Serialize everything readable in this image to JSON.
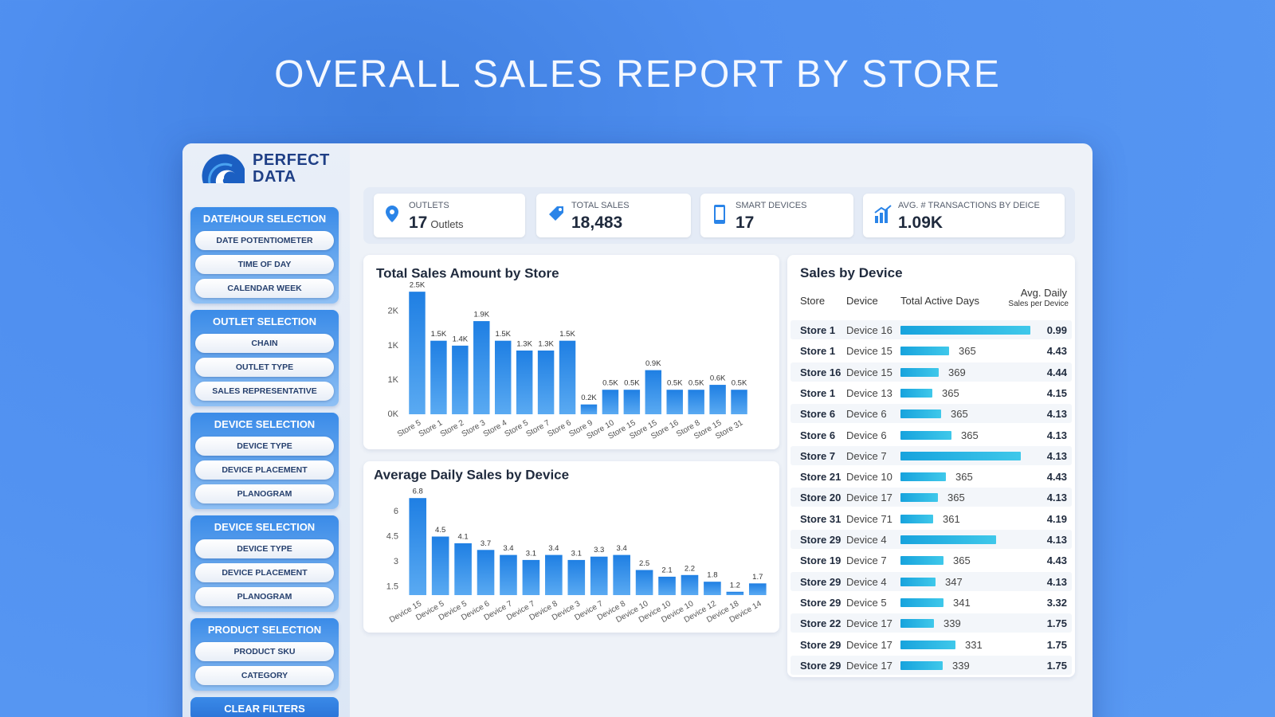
{
  "title": "OVERALL SALES REPORT BY STORE",
  "logo": {
    "line1": "PERFECT",
    "line2": "DATA"
  },
  "sidebar": {
    "sections": [
      {
        "heading": "DATE/HOUR SELECTION",
        "buttons": [
          "DATE POTENTIOMETER",
          "TIME OF DAY",
          "CALENDAR WEEK"
        ]
      },
      {
        "heading": "OUTLET SELECTION",
        "buttons": [
          "CHAIN",
          "OUTLET TYPE",
          "SALES REPRESENTATIVE"
        ]
      },
      {
        "heading": "DEVICE SELECTION",
        "buttons": [
          "DEVICE TYPE",
          "DEVICE PLACEMENT",
          "PLANOGRAM"
        ]
      },
      {
        "heading": "DEVICE SELECTION",
        "buttons": [
          "DEVICE TYPE",
          "DEVICE PLACEMENT",
          "PLANOGRAM"
        ]
      },
      {
        "heading": "PRODUCT SELECTION",
        "buttons": [
          "PRODUCT SKU",
          "CATEGORY"
        ]
      }
    ],
    "clear": "CLEAR FILTERS"
  },
  "kpis": [
    {
      "label": "OUTLETS",
      "value": 17,
      "unit": "Outlets"
    },
    {
      "label": "TOTAL SALES",
      "value": "18,483"
    },
    {
      "label": "SMART DEVICES",
      "value": 17
    },
    {
      "label": "AVG. # TRANSACTIONS BY DEICE",
      "value": "1.09K"
    }
  ],
  "chart_data": [
    {
      "type": "bar",
      "title": "Total Sales Amount by Store",
      "categories": [
        "Store 5",
        "Store 1",
        "Store 2",
        "Store 3",
        "Store 4",
        "Store 5",
        "Store 7",
        "Store 6",
        "Store 9",
        "Store 10",
        "Store 15",
        "Store 15",
        "Store 16",
        "Store 8",
        "Store 15",
        "Store 31"
      ],
      "values": [
        2500,
        1500,
        1400,
        1900,
        1500,
        1300,
        1300,
        1500,
        200,
        500,
        500,
        900,
        500,
        500,
        600,
        500
      ],
      "value_labels": [
        "2.5K",
        "1.5K",
        "1.4K",
        "1.9K",
        "1.5K",
        "1.3K",
        "1.3K",
        "1.5K",
        "0.2K",
        "0.5K",
        "0.5K",
        "0.9K",
        "0.5K",
        "0.5K",
        "0.6K",
        "0.5K"
      ],
      "color": "#1f7fe3",
      "ylim": [
        0,
        2600
      ],
      "yticks": [
        {
          "value": 0,
          "label": "0K"
        },
        {
          "value": 700,
          "label": "1K"
        },
        {
          "value": 1400,
          "label": "1K"
        },
        {
          "value": 2100,
          "label": "2K"
        }
      ]
    },
    {
      "type": "bar",
      "title": "Average Daily Sales by Device",
      "categories": [
        "Device 15",
        "Device 5",
        "Device 5",
        "Device 6",
        "Device 7",
        "Device 7",
        "Device 8",
        "Device 3",
        "Device 7",
        "Device 8",
        "Device 10",
        "Device 10",
        "Device 10",
        "Device 12",
        "Device 18",
        "Device 14"
      ],
      "values": [
        6.8,
        4.5,
        4.1,
        3.7,
        3.4,
        3.1,
        3.4,
        3.1,
        3.3,
        3.4,
        2.5,
        2.1,
        2.2,
        1.8,
        1.2,
        1.7
      ],
      "color": "#1f7fe3",
      "ylim": [
        1,
        7
      ],
      "yticks": [
        1.5,
        3,
        4.5,
        6
      ]
    }
  ],
  "table": {
    "title": "Sales by Device",
    "headers": [
      "Store",
      "Device",
      "Total Active Days",
      "Avg. Daily"
    ],
    "header_note": "Sales per Device",
    "rows": [
      {
        "store": "Store 1",
        "device": "Device 16",
        "days": null,
        "bar": 163,
        "avg": 0.99
      },
      {
        "store": "Store 1",
        "device": "Device 15",
        "days": 365,
        "bar": 61,
        "avg": 4.43
      },
      {
        "store": "Store 16",
        "device": "Device 15",
        "days": 369,
        "bar": 48,
        "avg": 4.44
      },
      {
        "store": "Store 1",
        "device": "Device 13",
        "days": 365,
        "bar": 40,
        "avg": 4.15
      },
      {
        "store": "Store 6",
        "device": "Device 6",
        "days": 365,
        "bar": 51,
        "avg": 4.13
      },
      {
        "store": "Store 6",
        "device": "Device 6",
        "days": 365,
        "bar": 64,
        "avg": 4.13
      },
      {
        "store": "Store 7",
        "device": "Device 7",
        "days": null,
        "bar": 151,
        "avg": 4.13
      },
      {
        "store": "Store 21",
        "device": "Device 10",
        "days": 365,
        "bar": 57,
        "avg": 4.43
      },
      {
        "store": "Store 20",
        "device": "Device 17",
        "days": 365,
        "bar": 47,
        "avg": 4.13
      },
      {
        "store": "Store 31",
        "device": "Device 71",
        "days": 361,
        "bar": 41,
        "avg": 4.19
      },
      {
        "store": "Store 29",
        "device": "Device 4",
        "days": null,
        "bar": 120,
        "avg": 4.13
      },
      {
        "store": "Store 19",
        "device": "Device 7",
        "days": 365,
        "bar": 54,
        "avg": 4.43
      },
      {
        "store": "Store 29",
        "device": "Device 4",
        "days": 347,
        "bar": 44,
        "avg": 4.13
      },
      {
        "store": "Store 29",
        "device": "Device 5",
        "days": 341,
        "bar": 54,
        "avg": 3.32
      },
      {
        "store": "Store 22",
        "device": "Device 17",
        "days": 339,
        "bar": 42,
        "avg": 1.75
      },
      {
        "store": "Store 29",
        "device": "Device 17",
        "days": 331,
        "bar": 69,
        "avg": 1.75
      },
      {
        "store": "Store 29",
        "device": "Device 17",
        "days": 339,
        "bar": 53,
        "avg": 1.75
      }
    ]
  }
}
